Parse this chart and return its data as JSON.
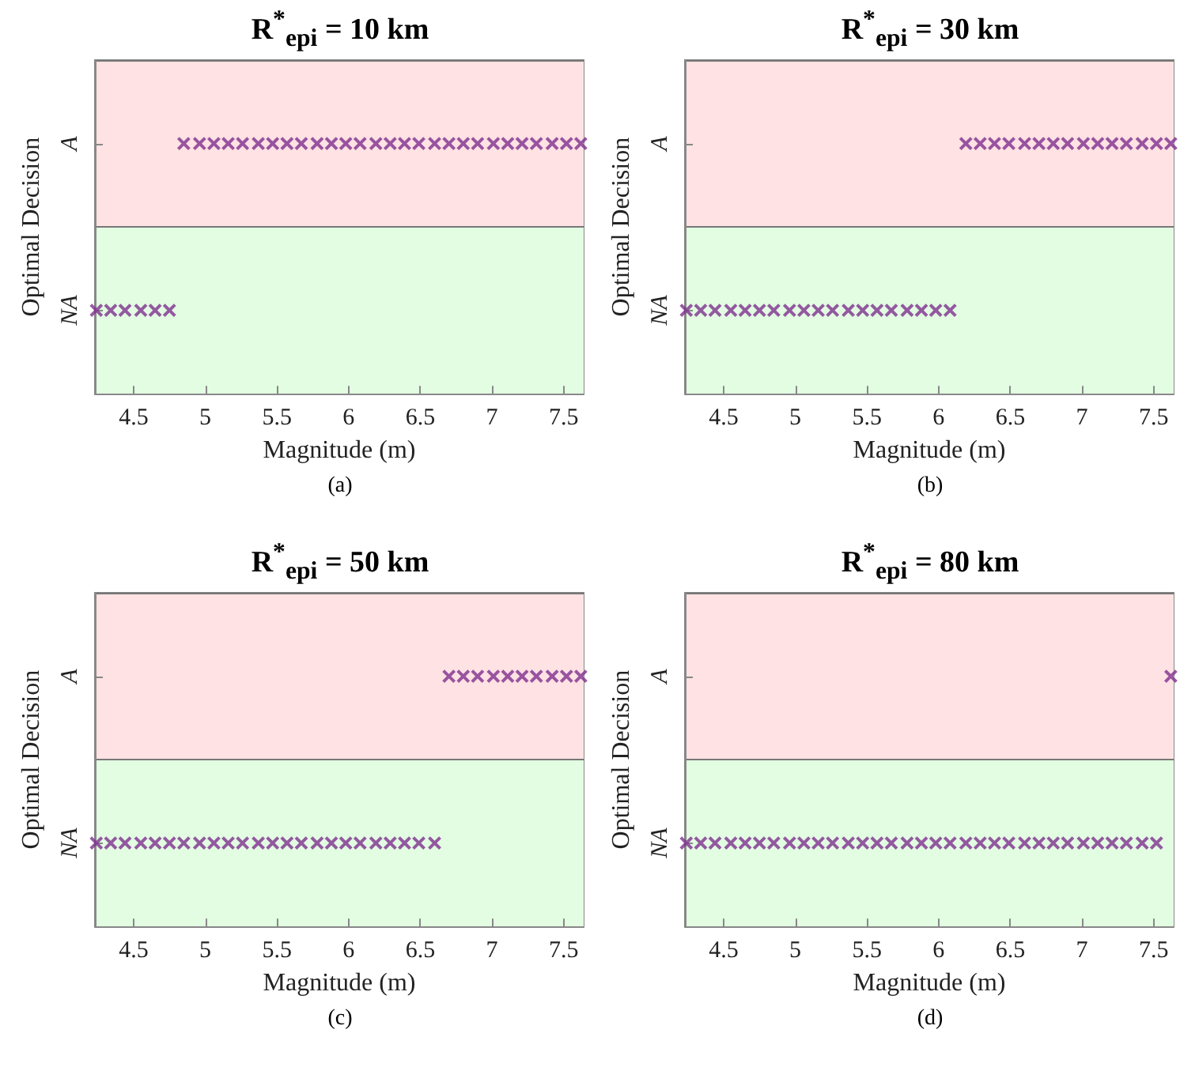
{
  "chart_data": [
    {
      "type": "scatter",
      "orientation": "horizontal",
      "title": "R$^{*}$$_{epi}$ = 10 km",
      "xlabel": "Magnitude (m)",
      "ylabel": "Optimal Decision",
      "annotations": [
        "(a)"
      ],
      "marker": "cross",
      "categories": [
        "A",
        "NA"
      ],
      "xlim": [
        4.23,
        7.64
      ],
      "xticks": [
        4.5,
        5,
        5.5,
        6,
        6.5,
        7,
        7.5
      ],
      "bands": [
        {
          "axis": "y",
          "from": "NA",
          "to": "NA",
          "color": "#e2fde2"
        },
        {
          "axis": "y",
          "from": "A",
          "to": "A",
          "color": "#ffe2e3"
        }
      ],
      "series": [
        {
          "color": "#7e2f8e",
          "values": [
            4.85,
            4.24
          ]
        },
        {
          "color": "#7e2f8e",
          "values": [
            4.96,
            4.34
          ]
        },
        {
          "color": "#7e2f8e",
          "values": [
            5.06,
            4.44
          ]
        },
        {
          "color": "#7e2f8e",
          "values": [
            5.16,
            4.55
          ]
        },
        {
          "color": "#7e2f8e",
          "values": [
            5.26,
            4.65
          ]
        },
        {
          "color": "#7e2f8e",
          "values": [
            5.37,
            4.75
          ]
        },
        {
          "color": "#7e2f8e",
          "values": [
            5.47,
            null
          ]
        },
        {
          "color": "#7e2f8e",
          "values": [
            5.57,
            null
          ]
        },
        {
          "color": "#7e2f8e",
          "values": [
            5.67,
            null
          ]
        },
        {
          "color": "#7e2f8e",
          "values": [
            5.78,
            null
          ]
        },
        {
          "color": "#7e2f8e",
          "values": [
            5.88,
            null
          ]
        },
        {
          "color": "#7e2f8e",
          "values": [
            5.98,
            null
          ]
        },
        {
          "color": "#7e2f8e",
          "values": [
            6.08,
            null
          ]
        },
        {
          "color": "#7e2f8e",
          "values": [
            6.19,
            null
          ]
        },
        {
          "color": "#7e2f8e",
          "values": [
            6.29,
            null
          ]
        },
        {
          "color": "#7e2f8e",
          "values": [
            6.39,
            null
          ]
        },
        {
          "color": "#7e2f8e",
          "values": [
            6.49,
            null
          ]
        },
        {
          "color": "#7e2f8e",
          "values": [
            6.6,
            null
          ]
        },
        {
          "color": "#7e2f8e",
          "values": [
            6.7,
            null
          ]
        },
        {
          "color": "#7e2f8e",
          "values": [
            6.8,
            null
          ]
        },
        {
          "color": "#7e2f8e",
          "values": [
            6.9,
            null
          ]
        },
        {
          "color": "#7e2f8e",
          "values": [
            7.01,
            null
          ]
        },
        {
          "color": "#7e2f8e",
          "values": [
            7.11,
            null
          ]
        },
        {
          "color": "#7e2f8e",
          "values": [
            7.21,
            null
          ]
        },
        {
          "color": "#7e2f8e",
          "values": [
            7.31,
            null
          ]
        },
        {
          "color": "#7e2f8e",
          "values": [
            7.42,
            null
          ]
        },
        {
          "color": "#7e2f8e",
          "values": [
            7.52,
            null
          ]
        },
        {
          "color": "#7e2f8e",
          "values": [
            7.62,
            null
          ]
        }
      ]
    },
    {
      "type": "scatter",
      "orientation": "horizontal",
      "title": "R$^{*}$$_{epi}$ = 30 km",
      "xlabel": "Magnitude (m)",
      "ylabel": "Optimal Decision",
      "annotations": [
        "(b)"
      ],
      "marker": "cross",
      "categories": [
        "A",
        "NA"
      ],
      "xlim": [
        4.23,
        7.64
      ],
      "xticks": [
        4.5,
        5,
        5.5,
        6,
        6.5,
        7,
        7.5
      ],
      "bands": [
        {
          "axis": "y",
          "from": "NA",
          "to": "NA",
          "color": "#e2fde2"
        },
        {
          "axis": "y",
          "from": "A",
          "to": "A",
          "color": "#ffe2e3"
        }
      ],
      "series": [
        {
          "color": "#7e2f8e",
          "values": [
            6.19,
            4.24
          ]
        },
        {
          "color": "#7e2f8e",
          "values": [
            6.29,
            4.34
          ]
        },
        {
          "color": "#7e2f8e",
          "values": [
            6.39,
            4.44
          ]
        },
        {
          "color": "#7e2f8e",
          "values": [
            6.49,
            4.55
          ]
        },
        {
          "color": "#7e2f8e",
          "values": [
            6.6,
            4.65
          ]
        },
        {
          "color": "#7e2f8e",
          "values": [
            6.7,
            4.75
          ]
        },
        {
          "color": "#7e2f8e",
          "values": [
            6.8,
            4.85
          ]
        },
        {
          "color": "#7e2f8e",
          "values": [
            6.9,
            4.96
          ]
        },
        {
          "color": "#7e2f8e",
          "values": [
            7.01,
            5.06
          ]
        },
        {
          "color": "#7e2f8e",
          "values": [
            7.11,
            5.16
          ]
        },
        {
          "color": "#7e2f8e",
          "values": [
            7.21,
            5.26
          ]
        },
        {
          "color": "#7e2f8e",
          "values": [
            7.31,
            5.37
          ]
        },
        {
          "color": "#7e2f8e",
          "values": [
            7.42,
            5.47
          ]
        },
        {
          "color": "#7e2f8e",
          "values": [
            7.52,
            5.57
          ]
        },
        {
          "color": "#7e2f8e",
          "values": [
            7.62,
            5.67
          ]
        },
        {
          "color": "#7e2f8e",
          "values": [
            null,
            5.78
          ]
        },
        {
          "color": "#7e2f8e",
          "values": [
            null,
            5.88
          ]
        },
        {
          "color": "#7e2f8e",
          "values": [
            null,
            5.98
          ]
        },
        {
          "color": "#7e2f8e",
          "values": [
            null,
            6.08
          ]
        }
      ]
    },
    {
      "type": "scatter",
      "orientation": "horizontal",
      "title": "R$^{*}$$_{epi}$ = 50 km",
      "xlabel": "Magnitude (m)",
      "ylabel": "Optimal Decision",
      "annotations": [
        "(c)"
      ],
      "marker": "cross",
      "categories": [
        "A",
        "NA"
      ],
      "xlim": [
        4.23,
        7.64
      ],
      "xticks": [
        4.5,
        5,
        5.5,
        6,
        6.5,
        7,
        7.5
      ],
      "bands": [
        {
          "axis": "y",
          "from": "NA",
          "to": "NA",
          "color": "#e2fde2"
        },
        {
          "axis": "y",
          "from": "A",
          "to": "A",
          "color": "#ffe2e3"
        }
      ],
      "series": [
        {
          "color": "#7e2f8e",
          "values": [
            6.7,
            4.24
          ]
        },
        {
          "color": "#7e2f8e",
          "values": [
            6.8,
            4.34
          ]
        },
        {
          "color": "#7e2f8e",
          "values": [
            6.9,
            4.44
          ]
        },
        {
          "color": "#7e2f8e",
          "values": [
            7.01,
            4.55
          ]
        },
        {
          "color": "#7e2f8e",
          "values": [
            7.11,
            4.65
          ]
        },
        {
          "color": "#7e2f8e",
          "values": [
            7.21,
            4.75
          ]
        },
        {
          "color": "#7e2f8e",
          "values": [
            7.31,
            4.85
          ]
        },
        {
          "color": "#7e2f8e",
          "values": [
            7.42,
            4.96
          ]
        },
        {
          "color": "#7e2f8e",
          "values": [
            7.52,
            5.06
          ]
        },
        {
          "color": "#7e2f8e",
          "values": [
            7.62,
            5.16
          ]
        },
        {
          "color": "#7e2f8e",
          "values": [
            null,
            5.26
          ]
        },
        {
          "color": "#7e2f8e",
          "values": [
            null,
            5.37
          ]
        },
        {
          "color": "#7e2f8e",
          "values": [
            null,
            5.47
          ]
        },
        {
          "color": "#7e2f8e",
          "values": [
            null,
            5.57
          ]
        },
        {
          "color": "#7e2f8e",
          "values": [
            null,
            5.67
          ]
        },
        {
          "color": "#7e2f8e",
          "values": [
            null,
            5.78
          ]
        },
        {
          "color": "#7e2f8e",
          "values": [
            null,
            5.88
          ]
        },
        {
          "color": "#7e2f8e",
          "values": [
            null,
            5.98
          ]
        },
        {
          "color": "#7e2f8e",
          "values": [
            null,
            6.08
          ]
        },
        {
          "color": "#7e2f8e",
          "values": [
            null,
            6.19
          ]
        },
        {
          "color": "#7e2f8e",
          "values": [
            null,
            6.29
          ]
        },
        {
          "color": "#7e2f8e",
          "values": [
            null,
            6.39
          ]
        },
        {
          "color": "#7e2f8e",
          "values": [
            null,
            6.49
          ]
        },
        {
          "color": "#7e2f8e",
          "values": [
            null,
            6.6
          ]
        }
      ]
    },
    {
      "type": "scatter",
      "orientation": "horizontal",
      "title": "R$^{*}$$_{epi}$ = 80 km",
      "xlabel": "Magnitude (m)",
      "ylabel": "Optimal Decision",
      "annotations": [
        "(d)"
      ],
      "marker": "cross",
      "categories": [
        "A",
        "NA"
      ],
      "xlim": [
        4.23,
        7.64
      ],
      "xticks": [
        4.5,
        5,
        5.5,
        6,
        6.5,
        7,
        7.5
      ],
      "bands": [
        {
          "axis": "y",
          "from": "NA",
          "to": "NA",
          "color": "#e2fde2"
        },
        {
          "axis": "y",
          "from": "A",
          "to": "A",
          "color": "#ffe2e3"
        }
      ],
      "series": [
        {
          "color": "#7e2f8e",
          "values": [
            7.62,
            4.24
          ]
        },
        {
          "color": "#7e2f8e",
          "values": [
            null,
            4.34
          ]
        },
        {
          "color": "#7e2f8e",
          "values": [
            null,
            4.44
          ]
        },
        {
          "color": "#7e2f8e",
          "values": [
            null,
            4.55
          ]
        },
        {
          "color": "#7e2f8e",
          "values": [
            null,
            4.65
          ]
        },
        {
          "color": "#7e2f8e",
          "values": [
            null,
            4.75
          ]
        },
        {
          "color": "#7e2f8e",
          "values": [
            null,
            4.85
          ]
        },
        {
          "color": "#7e2f8e",
          "values": [
            null,
            4.96
          ]
        },
        {
          "color": "#7e2f8e",
          "values": [
            null,
            5.06
          ]
        },
        {
          "color": "#7e2f8e",
          "values": [
            null,
            5.16
          ]
        },
        {
          "color": "#7e2f8e",
          "values": [
            null,
            5.26
          ]
        },
        {
          "color": "#7e2f8e",
          "values": [
            null,
            5.37
          ]
        },
        {
          "color": "#7e2f8e",
          "values": [
            null,
            5.47
          ]
        },
        {
          "color": "#7e2f8e",
          "values": [
            null,
            5.57
          ]
        },
        {
          "color": "#7e2f8e",
          "values": [
            null,
            5.67
          ]
        },
        {
          "color": "#7e2f8e",
          "values": [
            null,
            5.78
          ]
        },
        {
          "color": "#7e2f8e",
          "values": [
            null,
            5.88
          ]
        },
        {
          "color": "#7e2f8e",
          "values": [
            null,
            5.98
          ]
        },
        {
          "color": "#7e2f8e",
          "values": [
            null,
            6.08
          ]
        },
        {
          "color": "#7e2f8e",
          "values": [
            null,
            6.19
          ]
        },
        {
          "color": "#7e2f8e",
          "values": [
            null,
            6.29
          ]
        },
        {
          "color": "#7e2f8e",
          "values": [
            null,
            6.39
          ]
        },
        {
          "color": "#7e2f8e",
          "values": [
            null,
            6.49
          ]
        },
        {
          "color": "#7e2f8e",
          "values": [
            null,
            6.6
          ]
        },
        {
          "color": "#7e2f8e",
          "values": [
            null,
            6.7
          ]
        },
        {
          "color": "#7e2f8e",
          "values": [
            null,
            6.8
          ]
        },
        {
          "color": "#7e2f8e",
          "values": [
            null,
            6.9
          ]
        },
        {
          "color": "#7e2f8e",
          "values": [
            null,
            7.01
          ]
        },
        {
          "color": "#7e2f8e",
          "values": [
            null,
            7.11
          ]
        },
        {
          "color": "#7e2f8e",
          "values": [
            null,
            7.21
          ]
        },
        {
          "color": "#7e2f8e",
          "values": [
            null,
            7.31
          ]
        },
        {
          "color": "#7e2f8e",
          "values": [
            null,
            7.42
          ]
        },
        {
          "color": "#7e2f8e",
          "values": [
            null,
            7.52
          ]
        }
      ]
    }
  ]
}
